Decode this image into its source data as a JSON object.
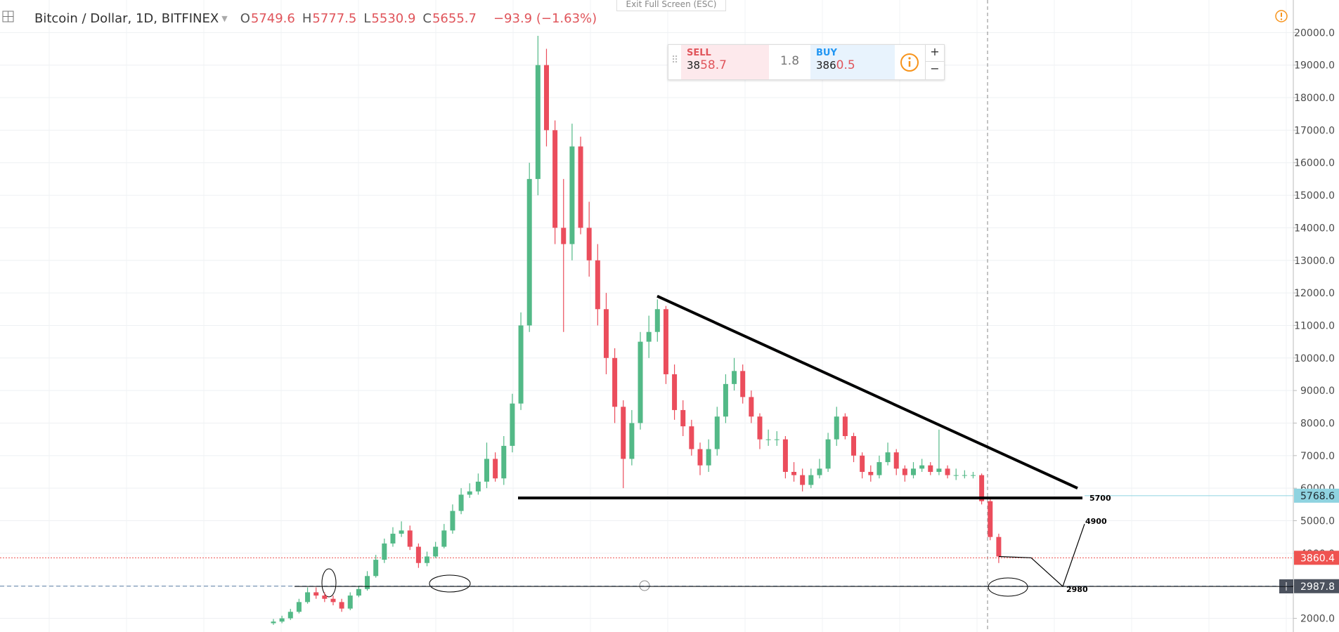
{
  "toolbar": {
    "exit_fullscreen": "Exit Full Screen (ESC)"
  },
  "trade": {
    "sell_label": "SELL",
    "sell_prefix": "38",
    "sell_main": "58.7",
    "spread": "1.8",
    "buy_label": "BUY",
    "buy_prefix": "386",
    "buy_main": "0.5"
  },
  "chart_data": {
    "type": "candlestick",
    "title": "Bitcoin / Dollar, 1D, BITFINEX",
    "ohlc": [
      {
        "label": "O",
        "value": 5749.6
      },
      {
        "label": "H",
        "value": 5777.5
      },
      {
        "label": "L",
        "value": 5530.9
      },
      {
        "label": "C",
        "value": 5655.7
      }
    ],
    "change": "−93.9 (−1.63%)",
    "up_color": "#53b987",
    "down_color": "#eb4d5c",
    "grid": true,
    "ylim": [
      1580,
      21000
    ],
    "yticks": [
      {
        "value": 2000,
        "label": "2000.0"
      },
      {
        "value": 3000,
        "label": "3000.0"
      },
      {
        "value": 4000,
        "label": "4000.0"
      },
      {
        "value": 5000,
        "label": "5000.0"
      },
      {
        "value": 6000,
        "label": "6000.0"
      },
      {
        "value": 7000,
        "label": "7000.0"
      },
      {
        "value": 8000,
        "label": "8000.0"
      },
      {
        "value": 9000,
        "label": "9000.0"
      },
      {
        "value": 10000,
        "label": "10000.0"
      },
      {
        "value": 11000,
        "label": "11000.0"
      },
      {
        "value": 12000,
        "label": "12000.0"
      },
      {
        "value": 13000,
        "label": "13000.0"
      },
      {
        "value": 14000,
        "label": "14000.0"
      },
      {
        "value": 15000,
        "label": "15000.0"
      },
      {
        "value": 16000,
        "label": "16000.0"
      },
      {
        "value": 17000,
        "label": "17000.0"
      },
      {
        "value": 18000,
        "label": "18000.0"
      },
      {
        "value": 19000,
        "label": "19000.0"
      },
      {
        "value": 20000,
        "label": "20000.0"
      }
    ],
    "open": [
      1850,
      1900,
      2000,
      2200,
      2500,
      2800,
      2700,
      2600,
      2500,
      2300,
      2700,
      2900,
      3300,
      3800,
      4300,
      4600,
      4700,
      4200,
      3700,
      3900,
      4200,
      4700,
      5300,
      5800,
      5900,
      6200,
      6900,
      6300,
      7300,
      8600,
      11000,
      15500,
      19000,
      17000,
      14000,
      13500,
      16500,
      14000,
      13000,
      11500,
      10000,
      8500,
      6900,
      8000,
      10500,
      10800,
      11500,
      9500,
      8400,
      7900,
      7200,
      6700,
      7200,
      8200,
      9200,
      9600,
      8800,
      8200,
      7500,
      7500,
      7500,
      6500,
      6400,
      6100,
      6400,
      6600,
      7500,
      8200,
      7600,
      7000,
      6500,
      6400,
      6800,
      7100,
      6600,
      6400,
      6600,
      6700,
      6500,
      6600,
      6400,
      6400,
      6400,
      6400,
      5600,
      4500
    ],
    "high": [
      1980,
      2080,
      2290,
      2600,
      2950,
      2950,
      2800,
      2700,
      2600,
      2800,
      3000,
      3450,
      3950,
      4450,
      4800,
      4980,
      4850,
      4300,
      4050,
      4350,
      4900,
      5500,
      6000,
      6150,
      6450,
      7400,
      7100,
      7600,
      8900,
      11400,
      16000,
      19900,
      19500,
      17300,
      15500,
      17200,
      16800,
      14800,
      13500,
      12000,
      10300,
      8700,
      8400,
      10800,
      11300,
      11800,
      11600,
      9800,
      8700,
      8100,
      7400,
      7500,
      8500,
      9500,
      10000,
      9800,
      9000,
      8300,
      7800,
      7750,
      7600,
      6800,
      6600,
      6600,
      6900,
      7700,
      8500,
      8300,
      7700,
      7100,
      6700,
      7000,
      7400,
      7200,
      6700,
      6800,
      6900,
      6800,
      7800,
      6700,
      6600,
      6550,
      6500,
      6450,
      5700,
      4600
    ],
    "low": [
      1800,
      1850,
      1950,
      2150,
      2450,
      2600,
      2500,
      2400,
      2200,
      2250,
      2650,
      2850,
      3250,
      3700,
      4200,
      4500,
      4100,
      3550,
      3600,
      3850,
      4150,
      4600,
      5200,
      5700,
      5800,
      6000,
      6200,
      6100,
      7100,
      8400,
      10800,
      15000,
      16500,
      13500,
      10800,
      13000,
      13800,
      12500,
      11000,
      9500,
      8000,
      6000,
      6700,
      7800,
      10000,
      10500,
      9200,
      8100,
      7600,
      7000,
      6400,
      6500,
      7000,
      8000,
      9000,
      8600,
      8000,
      7200,
      7300,
      7300,
      6300,
      6200,
      5900,
      6000,
      6300,
      6500,
      7300,
      7500,
      6800,
      6300,
      6200,
      6300,
      6700,
      6400,
      6200,
      6300,
      6500,
      6400,
      6400,
      6300,
      6250,
      6300,
      6300,
      5500,
      4400,
      3700
    ],
    "close": [
      1900,
      2000,
      2200,
      2500,
      2800,
      2700,
      2600,
      2500,
      2300,
      2700,
      2900,
      3300,
      3800,
      4300,
      4600,
      4700,
      4200,
      3700,
      3900,
      4200,
      4700,
      5300,
      5800,
      5900,
      6200,
      6900,
      6300,
      7300,
      8600,
      11000,
      15500,
      19000,
      17000,
      14000,
      13500,
      16500,
      14000,
      13000,
      11500,
      10000,
      8500,
      6900,
      8000,
      10500,
      10800,
      11500,
      9500,
      8400,
      7900,
      7200,
      6700,
      7200,
      8200,
      9200,
      9600,
      8800,
      8200,
      7500,
      7500,
      7500,
      6500,
      6400,
      6100,
      6400,
      6600,
      7500,
      8200,
      7600,
      7000,
      6500,
      6400,
      6800,
      7100,
      6600,
      6400,
      6600,
      6700,
      6500,
      6600,
      6400,
      6400,
      6400,
      6400,
      5600,
      4500,
      3900
    ],
    "trendline": [
      11900,
      6000
    ],
    "levels": [
      5700,
      4900,
      2980
    ],
    "price_labels": [
      {
        "value": 5768.6,
        "color": "#8fd3e0"
      },
      {
        "value": 3860.4,
        "color": "#ef5350"
      },
      {
        "value": 2987.8,
        "color": "#4c525e"
      }
    ]
  }
}
